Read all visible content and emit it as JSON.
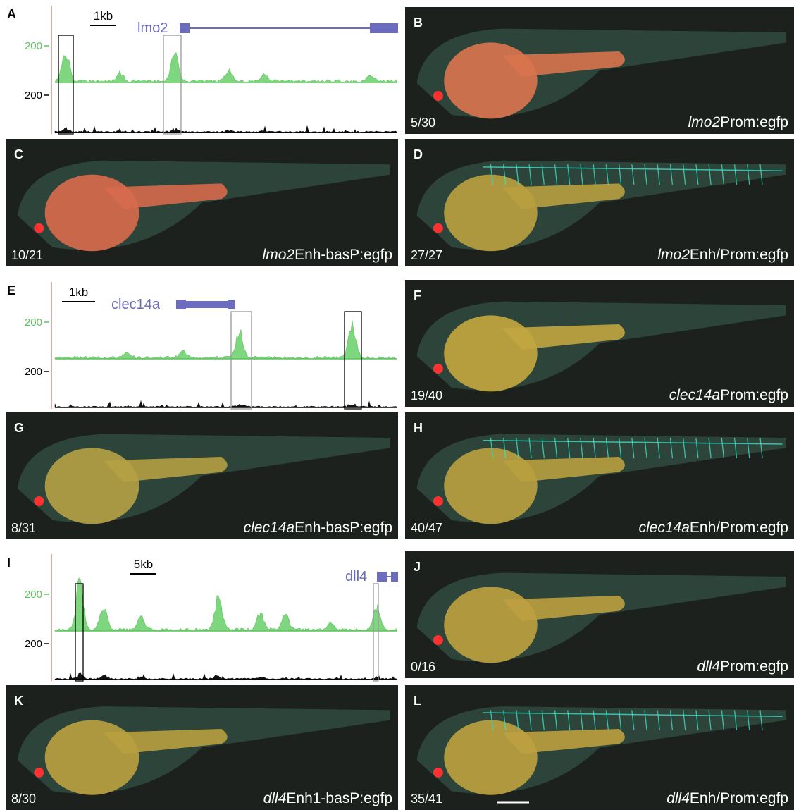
{
  "tracks": [
    {
      "letter": "A",
      "scale": "1kb",
      "gene": "lmo2",
      "signal_tick": "200",
      "input_tick": "200"
    },
    {
      "letter": "E",
      "scale": "1kb",
      "gene": "clec14a",
      "signal_tick": "200",
      "input_tick": "200"
    },
    {
      "letter": "I",
      "scale": "5kb",
      "gene": "dll4",
      "signal_tick": "200",
      "input_tick": "200"
    }
  ],
  "images": [
    {
      "letter": "B",
      "count": "5/30",
      "gene": "lmo2",
      "construct": "Prom:egfp"
    },
    {
      "letter": "C",
      "count": "10/21",
      "gene": "lmo2",
      "construct": "Enh-basP:egfp"
    },
    {
      "letter": "D",
      "count": "27/27",
      "gene": "lmo2",
      "construct": "Enh/Prom:egfp"
    },
    {
      "letter": "F",
      "count": "19/40",
      "gene": "clec14a",
      "construct": "Prom:egfp"
    },
    {
      "letter": "G",
      "count": "8/31",
      "gene": "clec14a",
      "construct": "Enh-basP:egfp"
    },
    {
      "letter": "H",
      "count": "40/47",
      "gene": "clec14a",
      "construct": "Enh/Prom:egfp"
    },
    {
      "letter": "J",
      "count": "0/16",
      "gene": "dll4",
      "construct": "Prom:egfp"
    },
    {
      "letter": "K",
      "count": "8/30",
      "gene": "dll4",
      "construct": "Enh1-basP:egfp"
    },
    {
      "letter": "L",
      "count": "35/41",
      "gene": "dll4",
      "construct": "Enh/Prom:egfp"
    }
  ]
}
